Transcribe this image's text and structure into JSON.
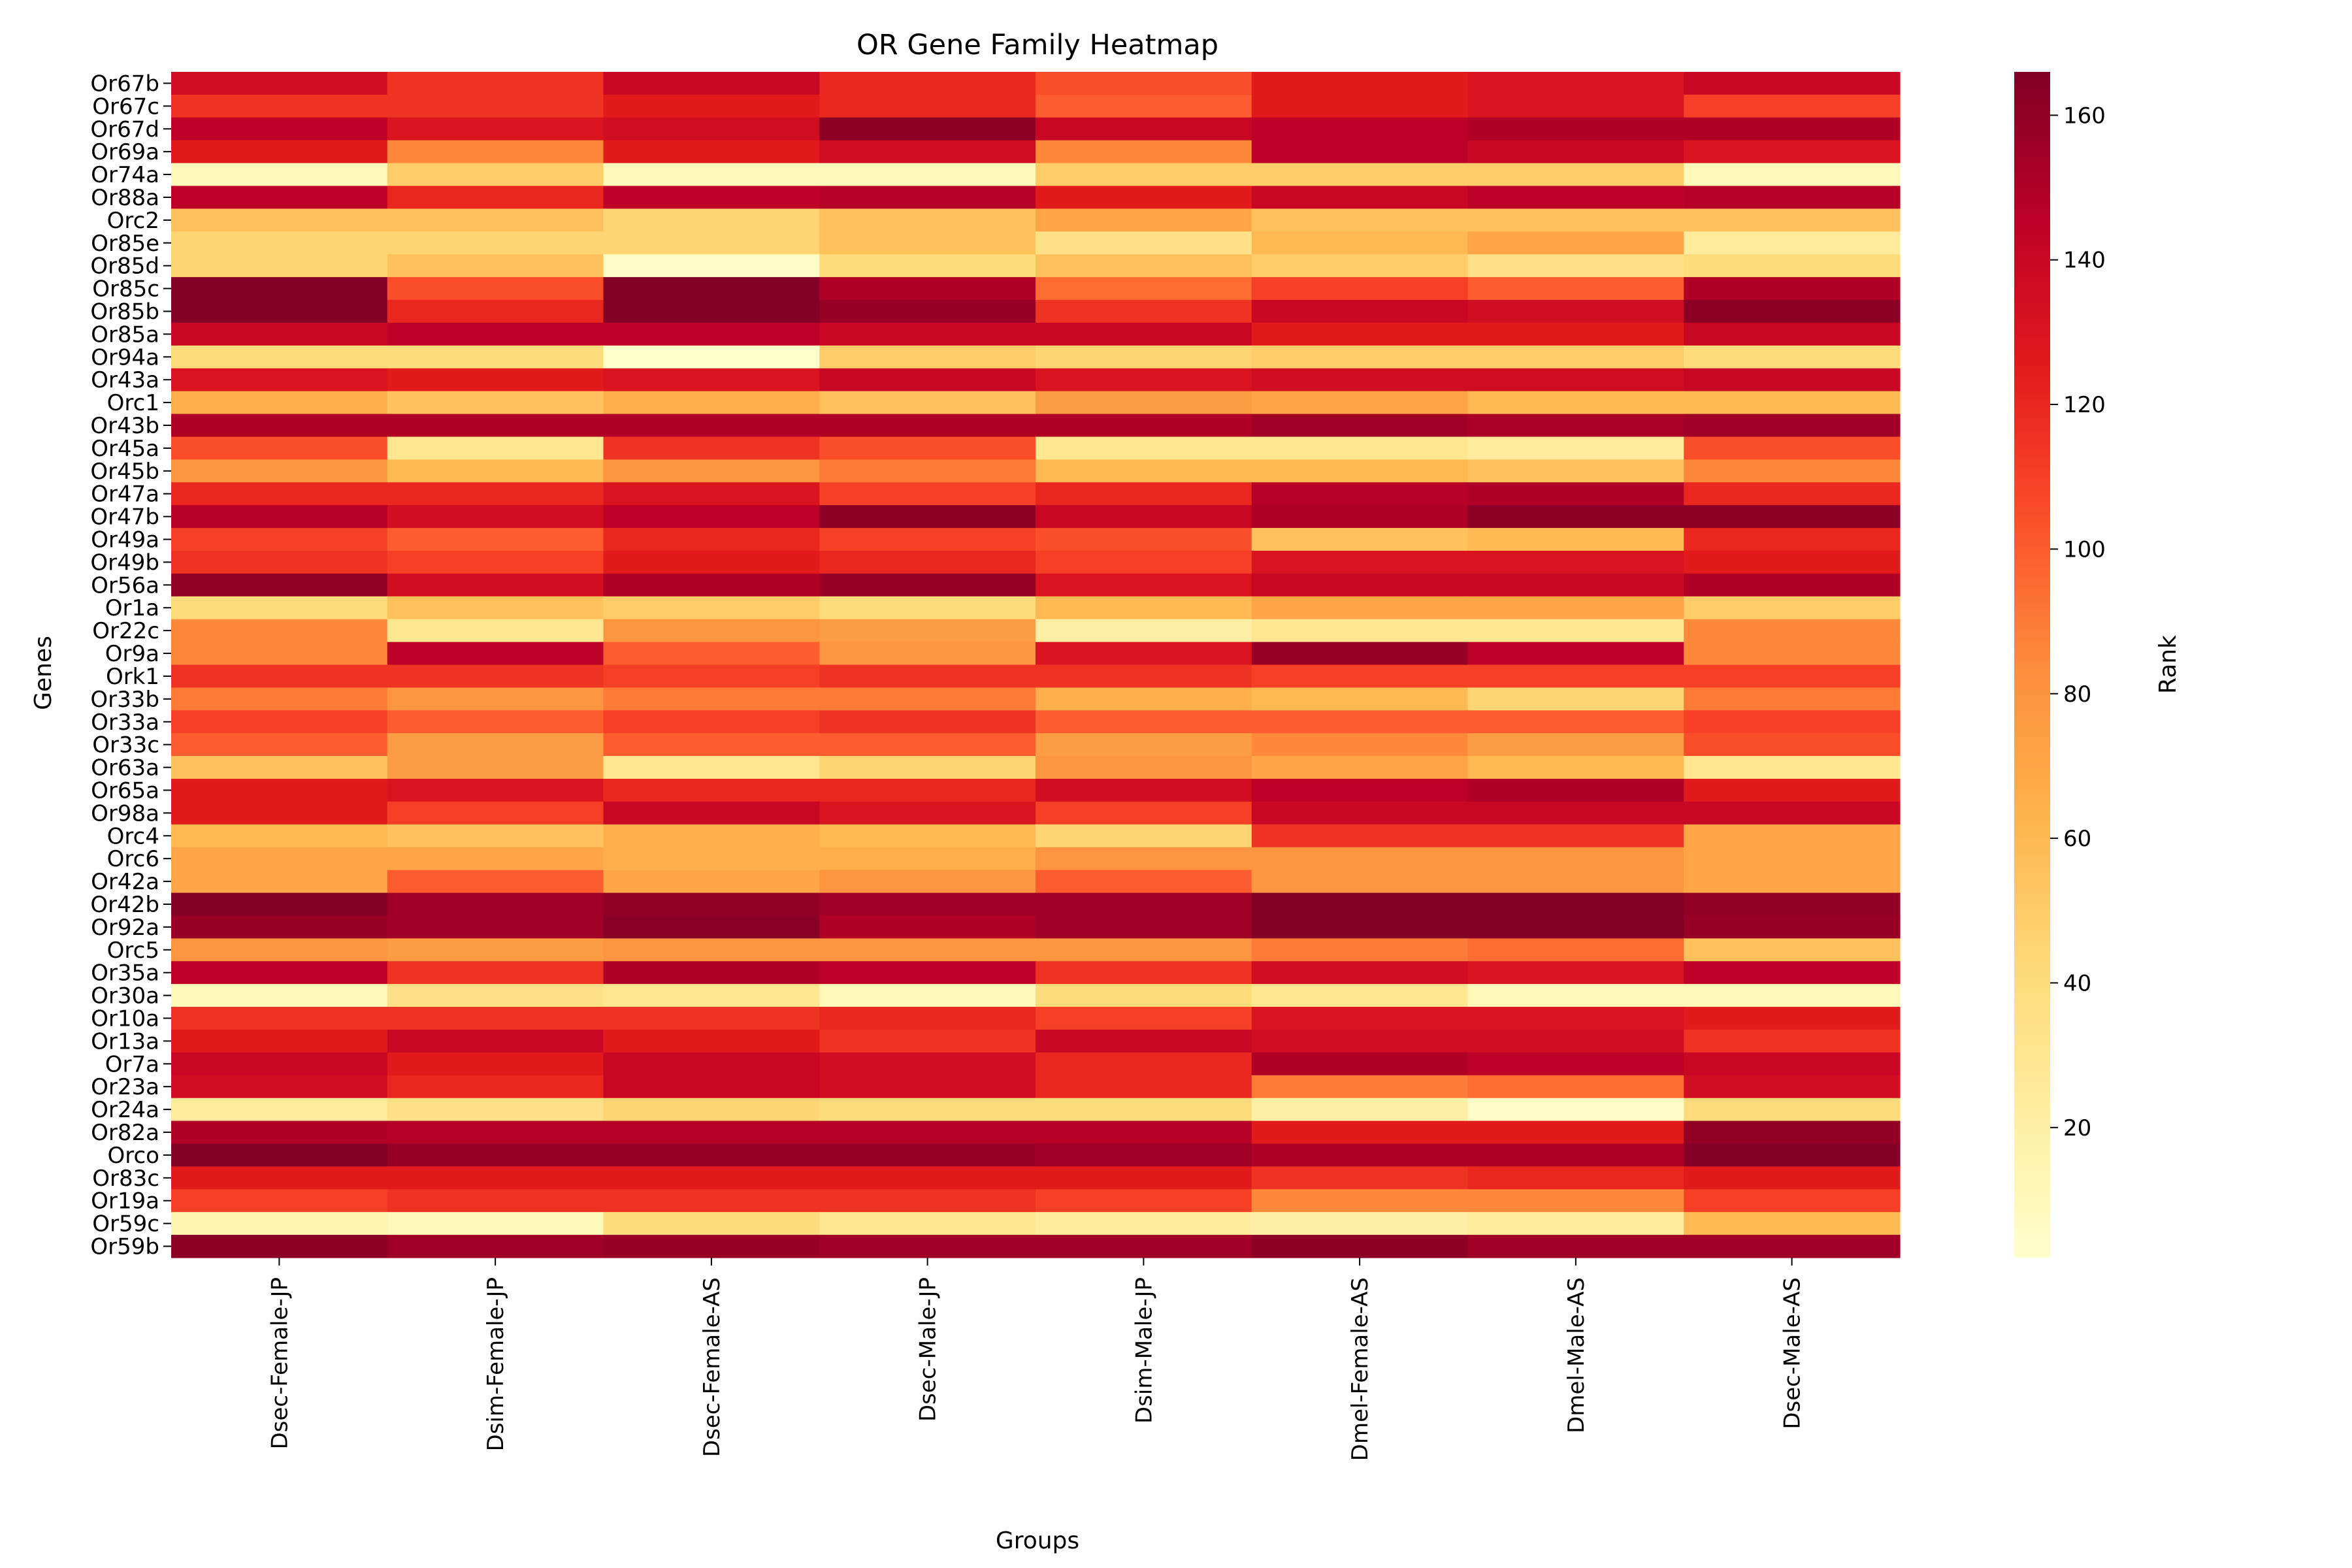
{
  "chart_data": {
    "type": "heatmap",
    "title": "OR Gene Family Heatmap",
    "xlabel": "Groups",
    "ylabel": "Genes",
    "colorbar_label": "Rank",
    "colormap": "YlOrRd",
    "value_range": [
      2,
      166
    ],
    "colorbar_ticks": [
      20,
      40,
      60,
      80,
      100,
      120,
      140,
      160
    ],
    "columns": [
      "Dsec-Female-JP",
      "Dsim-Female-JP",
      "Dsec-Female-AS",
      "Dsec-Male-JP",
      "Dsim-Male-JP",
      "Dmel-Female-AS",
      "Dmel-Male-AS",
      "Dsec-Male-AS"
    ],
    "rows": [
      "Or67b",
      "Or67c",
      "Or67d",
      "Or69a",
      "Or74a",
      "Or88a",
      "Orc2",
      "Or85e",
      "Or85d",
      "Or85c",
      "Or85b",
      "Or85a",
      "Or94a",
      "Or43a",
      "Orc1",
      "Or43b",
      "Or45a",
      "Or45b",
      "Or47a",
      "Or47b",
      "Or49a",
      "Or49b",
      "Or56a",
      "Or1a",
      "Or22c",
      "Or9a",
      "Ork1",
      "Or33b",
      "Or33a",
      "Or33c",
      "Or63a",
      "Or65a",
      "Or98a",
      "Orc4",
      "Orc6",
      "Or42a",
      "Or42b",
      "Or92a",
      "Orc5",
      "Or35a",
      "Or30a",
      "Or10a",
      "Or13a",
      "Or7a",
      "Or23a",
      "Or24a",
      "Or82a",
      "Orco",
      "Or83c",
      "Or19a",
      "Or59c",
      "Or59b"
    ],
    "values": [
      [
        135,
        115,
        140,
        120,
        105,
        125,
        130,
        140
      ],
      [
        115,
        115,
        125,
        120,
        100,
        125,
        130,
        110
      ],
      [
        145,
        130,
        135,
        162,
        140,
        145,
        150,
        150
      ],
      [
        125,
        85,
        125,
        135,
        85,
        145,
        140,
        130
      ],
      [
        10,
        50,
        10,
        10,
        50,
        50,
        50,
        10
      ],
      [
        145,
        120,
        145,
        148,
        125,
        140,
        145,
        148
      ],
      [
        55,
        55,
        45,
        55,
        70,
        55,
        55,
        55
      ],
      [
        45,
        45,
        45,
        55,
        35,
        60,
        70,
        25
      ],
      [
        45,
        55,
        5,
        40,
        55,
        50,
        35,
        40
      ],
      [
        165,
        105,
        165,
        150,
        95,
        110,
        100,
        150
      ],
      [
        165,
        120,
        165,
        158,
        115,
        140,
        135,
        162
      ],
      [
        140,
        145,
        145,
        140,
        140,
        125,
        125,
        140
      ],
      [
        40,
        40,
        2,
        50,
        45,
        50,
        50,
        40
      ],
      [
        130,
        125,
        130,
        140,
        130,
        135,
        135,
        140
      ],
      [
        65,
        55,
        65,
        55,
        75,
        70,
        60,
        60
      ],
      [
        150,
        150,
        150,
        150,
        150,
        155,
        152,
        155
      ],
      [
        105,
        30,
        115,
        105,
        30,
        30,
        25,
        105
      ],
      [
        80,
        60,
        80,
        90,
        60,
        60,
        55,
        85
      ],
      [
        120,
        120,
        130,
        110,
        120,
        148,
        150,
        120
      ],
      [
        148,
        135,
        145,
        162,
        140,
        150,
        162,
        162
      ],
      [
        110,
        100,
        120,
        110,
        105,
        55,
        60,
        120
      ],
      [
        115,
        110,
        125,
        120,
        110,
        130,
        130,
        125
      ],
      [
        160,
        135,
        150,
        158,
        130,
        140,
        140,
        150
      ],
      [
        40,
        55,
        50,
        40,
        60,
        70,
        70,
        50
      ],
      [
        85,
        30,
        80,
        75,
        20,
        30,
        30,
        85
      ],
      [
        85,
        145,
        100,
        80,
        130,
        158,
        145,
        85
      ],
      [
        115,
        115,
        110,
        115,
        115,
        110,
        110,
        110
      ],
      [
        90,
        80,
        90,
        90,
        65,
        60,
        45,
        90
      ],
      [
        110,
        100,
        110,
        115,
        100,
        100,
        100,
        110
      ],
      [
        100,
        75,
        100,
        100,
        75,
        85,
        75,
        105
      ],
      [
        55,
        75,
        30,
        45,
        80,
        70,
        60,
        30
      ],
      [
        125,
        130,
        120,
        120,
        135,
        145,
        150,
        125
      ],
      [
        125,
        110,
        140,
        130,
        110,
        140,
        140,
        140
      ],
      [
        60,
        55,
        65,
        60,
        45,
        115,
        115,
        70
      ],
      [
        70,
        70,
        65,
        65,
        80,
        80,
        80,
        70
      ],
      [
        70,
        100,
        70,
        80,
        100,
        80,
        80,
        70
      ],
      [
        165,
        155,
        160,
        155,
        155,
        165,
        165,
        160
      ],
      [
        158,
        155,
        163,
        150,
        155,
        165,
        165,
        158
      ],
      [
        80,
        75,
        80,
        80,
        80,
        90,
        95,
        55
      ],
      [
        145,
        115,
        150,
        145,
        115,
        135,
        130,
        145
      ],
      [
        10,
        35,
        30,
        10,
        40,
        30,
        10,
        10
      ],
      [
        115,
        115,
        115,
        120,
        110,
        130,
        130,
        125
      ],
      [
        125,
        140,
        125,
        115,
        140,
        135,
        135,
        115
      ],
      [
        140,
        125,
        140,
        135,
        120,
        150,
        145,
        140
      ],
      [
        135,
        120,
        140,
        135,
        120,
        90,
        95,
        135
      ],
      [
        25,
        35,
        45,
        40,
        40,
        20,
        5,
        40
      ],
      [
        150,
        148,
        148,
        148,
        148,
        125,
        125,
        160
      ],
      [
        165,
        158,
        158,
        158,
        155,
        150,
        150,
        165
      ],
      [
        125,
        125,
        125,
        125,
        125,
        115,
        120,
        125
      ],
      [
        110,
        115,
        115,
        115,
        110,
        85,
        85,
        110
      ],
      [
        15,
        10,
        40,
        30,
        25,
        20,
        25,
        60
      ],
      [
        162,
        155,
        158,
        155,
        155,
        162,
        155,
        155
      ]
    ]
  }
}
